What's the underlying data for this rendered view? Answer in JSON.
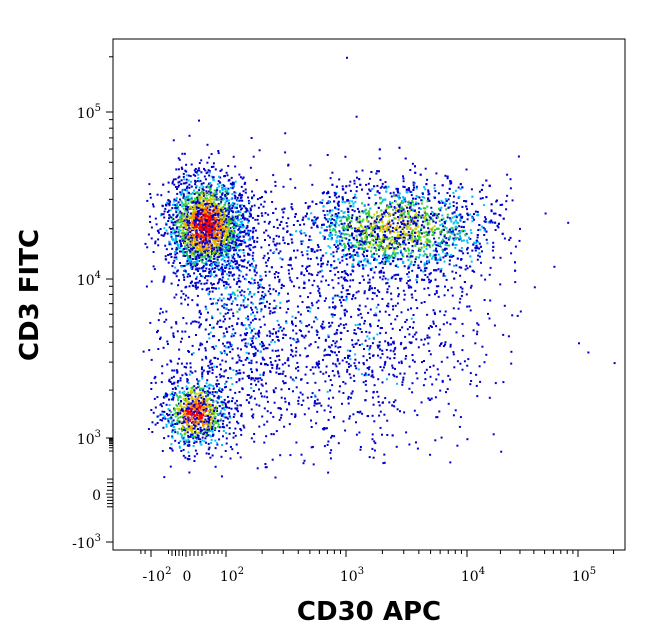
{
  "chart_data": {
    "type": "scatter",
    "style": "density-colored dot plot (flow cytometry)",
    "xlabel": "CD30 APC",
    "ylabel": "CD3 FITC",
    "x_scale": "biexponential",
    "y_scale": "biexponential",
    "xlim": [
      -300,
      250000
    ],
    "ylim": [
      -1500,
      250000
    ],
    "x_ticks": [
      {
        "base": "-10",
        "exp": "2",
        "value": -100
      },
      {
        "base": "0",
        "exp": "",
        "value": 0
      },
      {
        "base": "10",
        "exp": "2",
        "value": 100
      },
      {
        "base": "10",
        "exp": "3",
        "value": 1000
      },
      {
        "base": "10",
        "exp": "4",
        "value": 10000
      },
      {
        "base": "10",
        "exp": "5",
        "value": 100000
      }
    ],
    "y_ticks": [
      {
        "base": "10",
        "exp": "5",
        "value": 100000
      },
      {
        "base": "10",
        "exp": "4",
        "value": 10000
      },
      {
        "base": "10",
        "exp": "3",
        "value": 1000
      },
      {
        "base": "0",
        "exp": "",
        "value": 0
      },
      {
        "base": "-10",
        "exp": "3",
        "value": -1000
      }
    ],
    "density_colors": [
      "#0000cc",
      "#00bfff",
      "#2ecc40",
      "#c8d400",
      "#ff8c00",
      "#ff0000"
    ],
    "populations": [
      {
        "x": 50,
        "y": 16000,
        "density": "high"
      },
      {
        "x": 2500,
        "y": 17000,
        "density": "medium"
      },
      {
        "x": 30,
        "y": 1400,
        "density": "high"
      },
      {
        "x": 1000,
        "y": 4000,
        "density": "low"
      }
    ],
    "outliers": [
      {
        "x": 1000,
        "y": 200000
      },
      {
        "x": 1200,
        "y": 95000
      },
      {
        "x": 30,
        "y": 90000
      },
      {
        "x": 100000,
        "y": 4000
      },
      {
        "x": 120000,
        "y": 3500
      },
      {
        "x": 200000,
        "y": 3000
      },
      {
        "x": 60000,
        "y": 12000
      },
      {
        "x": 50000,
        "y": 25000
      },
      {
        "x": 80000,
        "y": 22000
      },
      {
        "x": 40000,
        "y": 9000
      },
      {
        "x": 25000,
        "y": 6000
      }
    ],
    "grid": false,
    "legend": "none"
  }
}
